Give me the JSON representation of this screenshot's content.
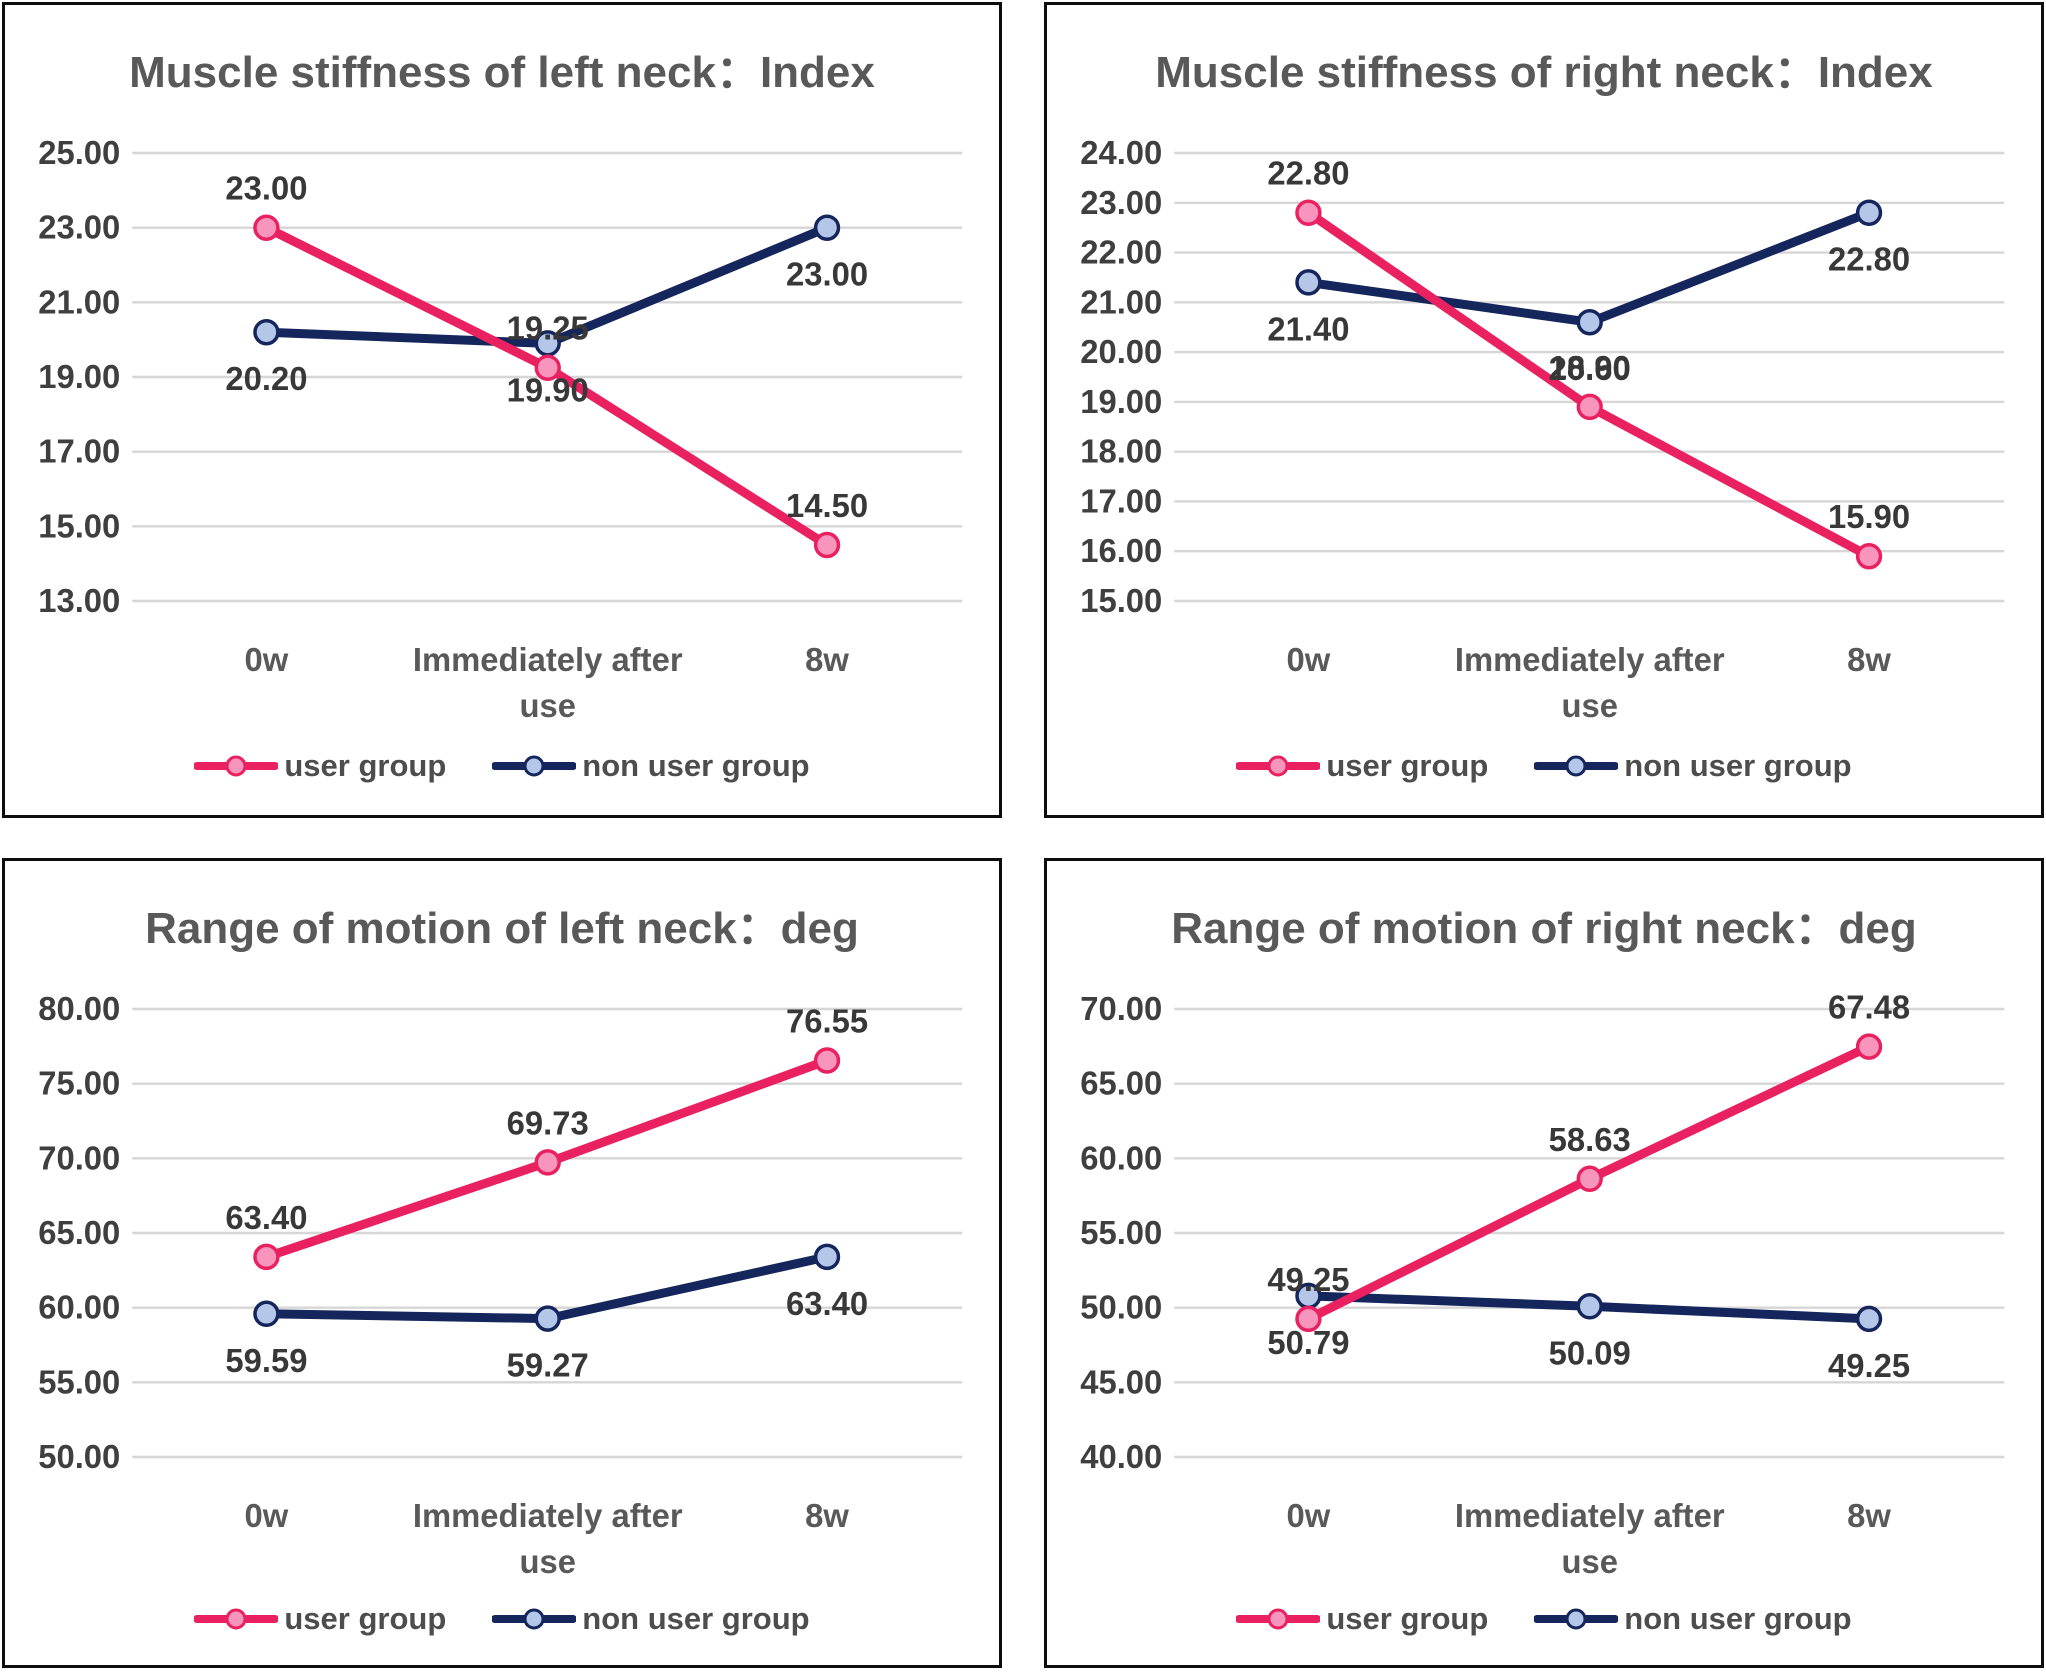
{
  "page": {
    "background": "#ffffff",
    "layout": "2x2-grid-of-line-charts"
  },
  "colors": {
    "user_line": "#EA2160",
    "user_marker_fill": "#F795BD",
    "non_user_line": "#14265C",
    "non_user_marker_fill": "#B4C7E8",
    "gridline": "#D6D6D6",
    "title_text": "#595959",
    "tick_text": "#3F3F3F",
    "data_label_text": "#383838",
    "x_label_text": "#595959",
    "legend_text": "#4D4D4D",
    "panel_border": "#0D0D0D"
  },
  "x_axis_display": [
    [
      "0w"
    ],
    [
      "Immediately after",
      "use"
    ],
    [
      "8w"
    ]
  ],
  "legend": {
    "entries": [
      "user group",
      "non user group"
    ],
    "position": "bottom"
  },
  "chart_data": [
    {
      "type": "line",
      "title": "Muscle stiffness of left neck：Index",
      "categories": [
        "0w",
        "Immediately after use",
        "8w"
      ],
      "ylim": [
        13,
        25
      ],
      "ytick_step": 2,
      "y_tick_labels": [
        "25.00",
        "23.00",
        "21.00",
        "19.00",
        "17.00",
        "15.00",
        "13.00"
      ],
      "grid": true,
      "legend_position": "bottom",
      "series": [
        {
          "name": "user group",
          "color_key": "user",
          "label_position": "above",
          "values": [
            23.0,
            19.25,
            14.5
          ],
          "data_labels": [
            "23.00",
            "19.25",
            "14.50"
          ]
        },
        {
          "name": "non user group",
          "color_key": "non_user",
          "label_position": "below",
          "values": [
            20.2,
            19.9,
            23.0
          ],
          "data_labels": [
            "20.20",
            "19.90",
            "23.00"
          ]
        }
      ]
    },
    {
      "type": "line",
      "title": "Muscle stiffness of right neck：Index",
      "categories": [
        "0w",
        "Immediately after use",
        "8w"
      ],
      "ylim": [
        15,
        24
      ],
      "ytick_step": 1,
      "y_tick_labels": [
        "24.00",
        "23.00",
        "22.00",
        "21.00",
        "20.00",
        "19.00",
        "18.00",
        "17.00",
        "16.00",
        "15.00"
      ],
      "grid": true,
      "legend_position": "bottom",
      "series": [
        {
          "name": "user group",
          "color_key": "user",
          "label_position": "above",
          "values": [
            22.8,
            18.9,
            15.9
          ],
          "data_labels": [
            "22.80",
            "18.90",
            "15.90"
          ]
        },
        {
          "name": "non user group",
          "color_key": "non_user",
          "label_position": "below",
          "values": [
            21.4,
            20.6,
            22.8
          ],
          "data_labels": [
            "21.40",
            "20.60",
            "22.80"
          ]
        }
      ]
    },
    {
      "type": "line",
      "title": "Range of motion of left neck：deg",
      "categories": [
        "0w",
        "Immediately after use",
        "8w"
      ],
      "ylim": [
        50,
        80
      ],
      "ytick_step": 5,
      "y_tick_labels": [
        "80.00",
        "75.00",
        "70.00",
        "65.00",
        "60.00",
        "55.00",
        "50.00"
      ],
      "grid": true,
      "legend_position": "bottom",
      "series": [
        {
          "name": "user group",
          "color_key": "user",
          "label_position": "above",
          "values": [
            63.4,
            69.73,
            76.55
          ],
          "data_labels": [
            "63.40",
            "69.73",
            "76.55"
          ]
        },
        {
          "name": "non user group",
          "color_key": "non_user",
          "label_position": "below",
          "values": [
            59.59,
            59.27,
            63.4
          ],
          "data_labels": [
            "59.59",
            "59.27",
            "63.40"
          ]
        }
      ]
    },
    {
      "type": "line",
      "title": "Range of motion of right neck：deg",
      "categories": [
        "0w",
        "Immediately after use",
        "8w"
      ],
      "ylim": [
        40,
        70
      ],
      "ytick_step": 5,
      "y_tick_labels": [
        "70.00",
        "65.00",
        "60.00",
        "55.00",
        "50.00",
        "45.00",
        "40.00"
      ],
      "grid": true,
      "legend_position": "bottom",
      "series": [
        {
          "name": "user group",
          "color_key": "user",
          "label_position": "above",
          "values": [
            49.25,
            58.63,
            67.48
          ],
          "data_labels": [
            "49.25",
            "58.63",
            "67.48"
          ]
        },
        {
          "name": "non user group",
          "color_key": "non_user",
          "label_position": "below",
          "values": [
            50.79,
            50.09,
            49.25
          ],
          "data_labels": [
            "50.79",
            "50.09",
            "49.25"
          ]
        }
      ]
    }
  ]
}
